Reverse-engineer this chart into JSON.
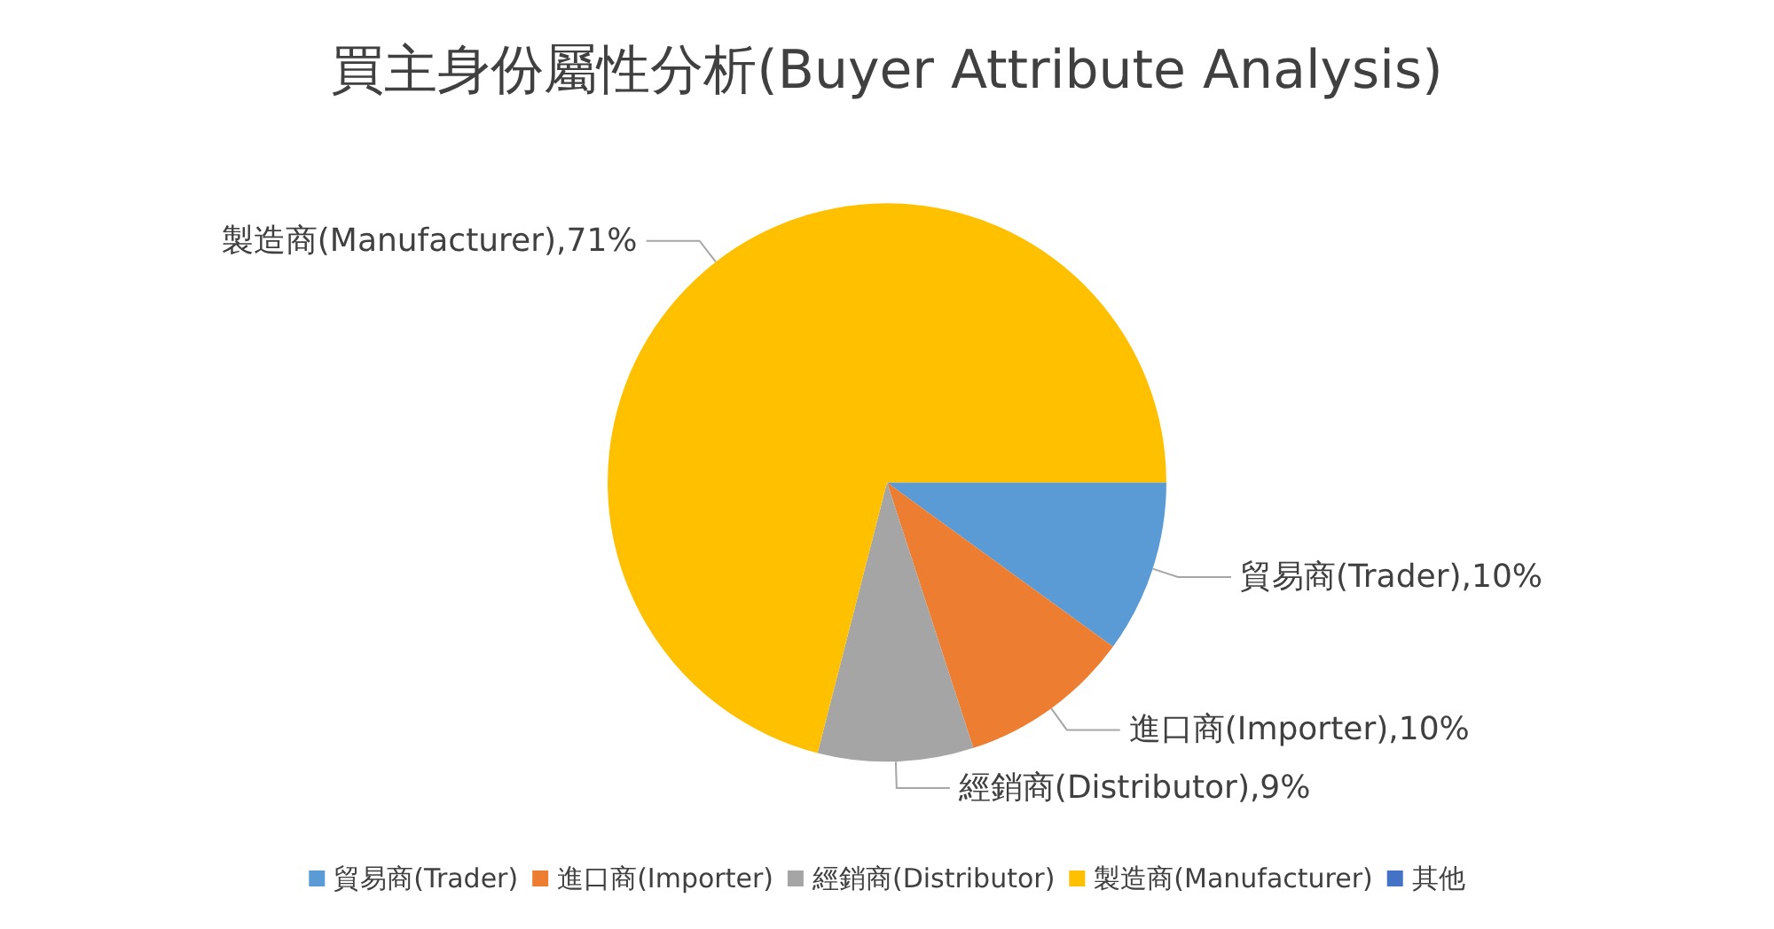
{
  "chart_data": {
    "type": "pie",
    "title": "買主身份屬性分析(Buyer Attribute Analysis)",
    "categories": [
      "貿易商(Trader)",
      "進口商(Importer)",
      "經銷商(Distributor)",
      "製造商(Manufacturer)",
      "其他"
    ],
    "values": [
      10,
      10,
      9,
      71,
      0
    ],
    "colors": [
      "#5b9bd5",
      "#ed7d31",
      "#a5a5a5",
      "#ffc000",
      "#4472c4"
    ],
    "value_labels": [
      "貿易商(Trader),10%",
      "進口商(Importer),10%",
      "經銷商(Distributor),9%",
      "製造商(Manufacturer),71%",
      null
    ],
    "legend": "bottom"
  }
}
